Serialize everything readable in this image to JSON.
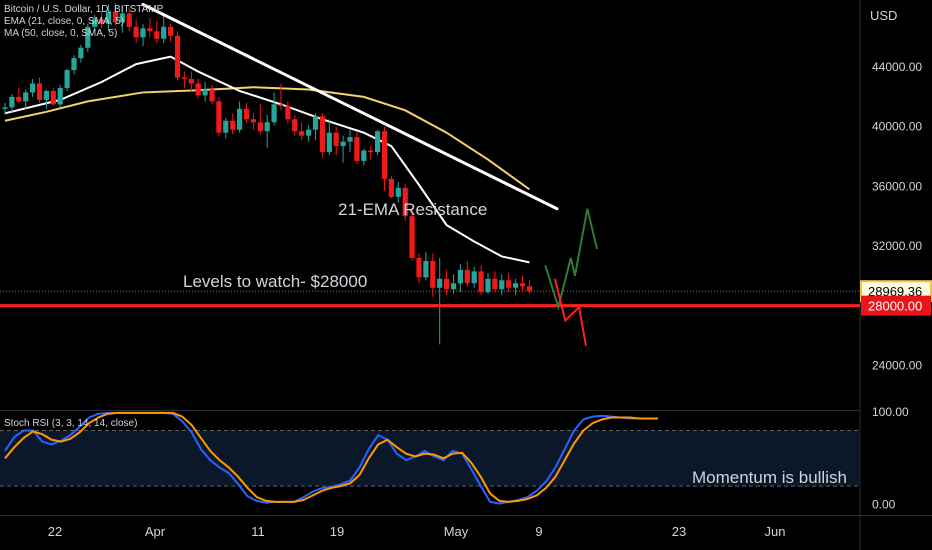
{
  "chart_data": [
    {
      "type": "candlestick",
      "title": "Bitcoin / U.S. Dollar, 1D, BITSTAMP",
      "indicators": [
        "EMA (21, close, 0, SMA, 5)",
        "MA (50, close, 0, SMA, 5)"
      ],
      "currency_label": "USD",
      "x_ticks": [
        "22",
        "Apr",
        "11",
        "19",
        "May",
        "9",
        "23",
        "Jun"
      ],
      "y_ticks": [
        "44000.00",
        "40000.00",
        "36000.00",
        "32000.00",
        "24000.00"
      ],
      "ylim": [
        21000,
        48500
      ],
      "grid": false,
      "last_price": {
        "label": "28969.36",
        "value": 28969.36,
        "color": "#f6c343"
      },
      "level_line": {
        "label": "28000.00",
        "value": 28000,
        "color": "#ff1f1f"
      },
      "annotations": [
        "Levels to watch- $28000",
        "21-EMA Resistance"
      ],
      "candles": [
        [
          41200,
          41600,
          40800,
          41300
        ],
        [
          41300,
          42200,
          41000,
          42000
        ],
        [
          42000,
          42600,
          41600,
          41700
        ],
        [
          41700,
          42500,
          41200,
          42300
        ],
        [
          42300,
          43200,
          42000,
          42900
        ],
        [
          42900,
          43300,
          41600,
          41800
        ],
        [
          41800,
          42500,
          41200,
          42400
        ],
        [
          42400,
          42600,
          41400,
          41500
        ],
        [
          41500,
          42800,
          41300,
          42600
        ],
        [
          42600,
          43900,
          42400,
          43800
        ],
        [
          43800,
          44800,
          43500,
          44600
        ],
        [
          44600,
          45500,
          44300,
          45300
        ],
        [
          45300,
          46900,
          45000,
          46700
        ],
        [
          46700,
          47500,
          46400,
          47200
        ],
        [
          47200,
          47700,
          46600,
          46900
        ],
        [
          46900,
          48200,
          46400,
          47700
        ],
        [
          47700,
          48300,
          46800,
          47000
        ],
        [
          47000,
          48100,
          46300,
          47600
        ],
        [
          47600,
          48000,
          46400,
          46700
        ],
        [
          46700,
          47200,
          45600,
          46000
        ],
        [
          46000,
          46900,
          45400,
          46600
        ],
        [
          46600,
          47300,
          46000,
          46400
        ],
        [
          46400,
          47100,
          45600,
          45900
        ],
        [
          45900,
          47500,
          45600,
          46700
        ],
        [
          46700,
          46900,
          45700,
          46100
        ],
        [
          46100,
          46400,
          43100,
          43300
        ],
        [
          43300,
          43700,
          42600,
          43200
        ],
        [
          43200,
          43700,
          42400,
          42900
        ],
        [
          42900,
          43200,
          41900,
          42100
        ],
        [
          42100,
          43000,
          41700,
          42500
        ],
        [
          42500,
          42800,
          41500,
          41700
        ],
        [
          41700,
          42000,
          39400,
          39600
        ],
        [
          39600,
          40600,
          39200,
          40400
        ],
        [
          40400,
          40900,
          39500,
          39800
        ],
        [
          39800,
          41700,
          39600,
          41200
        ],
        [
          41200,
          41600,
          40300,
          40500
        ],
        [
          40500,
          40900,
          39800,
          40300
        ],
        [
          40300,
          41500,
          39500,
          39700
        ],
        [
          39700,
          40800,
          38600,
          40300
        ],
        [
          40300,
          42300,
          40100,
          41500
        ],
        [
          41500,
          42900,
          41100,
          41400
        ],
        [
          41400,
          41700,
          40200,
          40500
        ],
        [
          40500,
          40800,
          39400,
          39700
        ],
        [
          39700,
          40300,
          39100,
          39400
        ],
        [
          39400,
          40100,
          39000,
          39800
        ],
        [
          39800,
          40900,
          39100,
          40700
        ],
        [
          40700,
          40900,
          37900,
          38300
        ],
        [
          38300,
          40500,
          38100,
          39600
        ],
        [
          39600,
          40000,
          38100,
          38700
        ],
        [
          38700,
          39400,
          37600,
          39000
        ],
        [
          39000,
          39800,
          38300,
          39300
        ],
        [
          39300,
          39700,
          37500,
          37700
        ],
        [
          37700,
          38500,
          37400,
          38400
        ],
        [
          38400,
          38700,
          37800,
          38300
        ],
        [
          38300,
          39800,
          38100,
          39700
        ],
        [
          39700,
          40000,
          35700,
          36500
        ],
        [
          36500,
          36700,
          35200,
          35300
        ],
        [
          35300,
          36300,
          34900,
          35900
        ],
        [
          35900,
          36200,
          33700,
          34000
        ],
        [
          34000,
          34400,
          31000,
          31200
        ],
        [
          31200,
          31500,
          29500,
          29900
        ],
        [
          29900,
          31600,
          29700,
          31000
        ],
        [
          31000,
          31500,
          28600,
          29200
        ],
        [
          29200,
          31200,
          25400,
          29800
        ],
        [
          29800,
          30400,
          28700,
          29100
        ],
        [
          29100,
          30100,
          28800,
          29500
        ],
        [
          29500,
          30800,
          28900,
          30400
        ],
        [
          30400,
          31000,
          29300,
          29500
        ],
        [
          29500,
          30600,
          29200,
          30300
        ],
        [
          30300,
          30700,
          28700,
          28900
        ],
        [
          28900,
          30200,
          28800,
          29800
        ],
        [
          29800,
          30300,
          28900,
          29100
        ],
        [
          29100,
          30100,
          28700,
          29700
        ],
        [
          29700,
          30200,
          28900,
          29200
        ],
        [
          29200,
          29800,
          28700,
          29500
        ],
        [
          29500,
          30000,
          28900,
          29300
        ],
        [
          29300,
          29700,
          28800,
          28969
        ]
      ],
      "ema21": [
        [
          0,
          40900
        ],
        [
          8,
          41800
        ],
        [
          14,
          43000
        ],
        [
          19,
          44200
        ],
        [
          24,
          44700
        ],
        [
          28,
          43700
        ],
        [
          34,
          42400
        ],
        [
          40,
          41500
        ],
        [
          46,
          40500
        ],
        [
          52,
          39600
        ],
        [
          56,
          38700
        ],
        [
          60,
          36100
        ],
        [
          64,
          33400
        ],
        [
          68,
          32300
        ],
        [
          72,
          31300
        ],
        [
          76,
          30900
        ]
      ],
      "ma50": [
        [
          0,
          40400
        ],
        [
          6,
          41000
        ],
        [
          12,
          41700
        ],
        [
          20,
          42300
        ],
        [
          28,
          42450
        ],
        [
          36,
          42650
        ],
        [
          44,
          42500
        ],
        [
          52,
          42000
        ],
        [
          58,
          41100
        ],
        [
          64,
          39600
        ],
        [
          70,
          37800
        ],
        [
          76,
          35800
        ]
      ],
      "drawn_lines": [
        {
          "color": "#ffffff",
          "points": [
            [
              20,
              48200
            ],
            [
              80,
              34500
            ]
          ]
        }
      ],
      "arrows": [
        {
          "color": "#2e7d32",
          "points": [
            [
              78.3,
              30700
            ],
            [
              80.2,
              27900
            ],
            [
              82,
              31200
            ],
            [
              82.6,
              30000
            ],
            [
              84.4,
              34500
            ],
            [
              85.8,
              31800
            ]
          ],
          "head": "up"
        },
        {
          "color": "#ff1f1f",
          "points": [
            [
              79.7,
              29800
            ],
            [
              81.2,
              27000
            ],
            [
              83.2,
              27900
            ],
            [
              84.2,
              25300
            ]
          ],
          "head": "down"
        }
      ]
    },
    {
      "type": "line",
      "title": "Stoch RSI (3, 3, 14, 14, close)",
      "y_ticks": [
        "100.00",
        "0.00"
      ],
      "ylim": [
        -8,
        100
      ],
      "bands": [
        80,
        20
      ],
      "annotation": "Momentum is bullish",
      "series": [
        {
          "color": "#2962ff",
          "values": [
            58,
            73,
            80,
            80,
            68,
            65,
            69,
            75,
            84,
            94,
            98,
            99,
            99,
            99,
            99,
            99,
            99,
            99,
            98,
            90,
            78,
            60,
            48,
            40,
            34,
            22,
            9,
            4,
            2,
            3,
            3,
            3,
            8,
            14,
            18,
            19,
            22,
            26,
            40,
            60,
            75,
            70,
            55,
            48,
            52,
            58,
            52,
            48,
            58,
            55,
            38,
            20,
            3,
            1,
            3,
            5,
            8,
            15,
            25,
            40,
            60,
            80,
            92,
            95,
            96,
            95,
            94,
            93,
            93,
            93,
            93
          ]
        },
        {
          "color": "#ff9800",
          "values": [
            50,
            62,
            72,
            79,
            76,
            70,
            68,
            71,
            78,
            88,
            94,
            98,
            99,
            99,
            99,
            99,
            99,
            99,
            99,
            95,
            86,
            72,
            58,
            48,
            40,
            30,
            18,
            8,
            4,
            3,
            3,
            3,
            5,
            10,
            15,
            18,
            20,
            23,
            32,
            50,
            65,
            70,
            62,
            55,
            52,
            55,
            54,
            50,
            55,
            56,
            45,
            30,
            12,
            4,
            3,
            4,
            6,
            10,
            18,
            30,
            48,
            66,
            80,
            88,
            92,
            94,
            94,
            94,
            93,
            93,
            93
          ]
        }
      ]
    }
  ],
  "x_axis_labels": [
    "22",
    "Apr",
    "11",
    "19",
    "May",
    "9",
    "23",
    "Jun"
  ]
}
